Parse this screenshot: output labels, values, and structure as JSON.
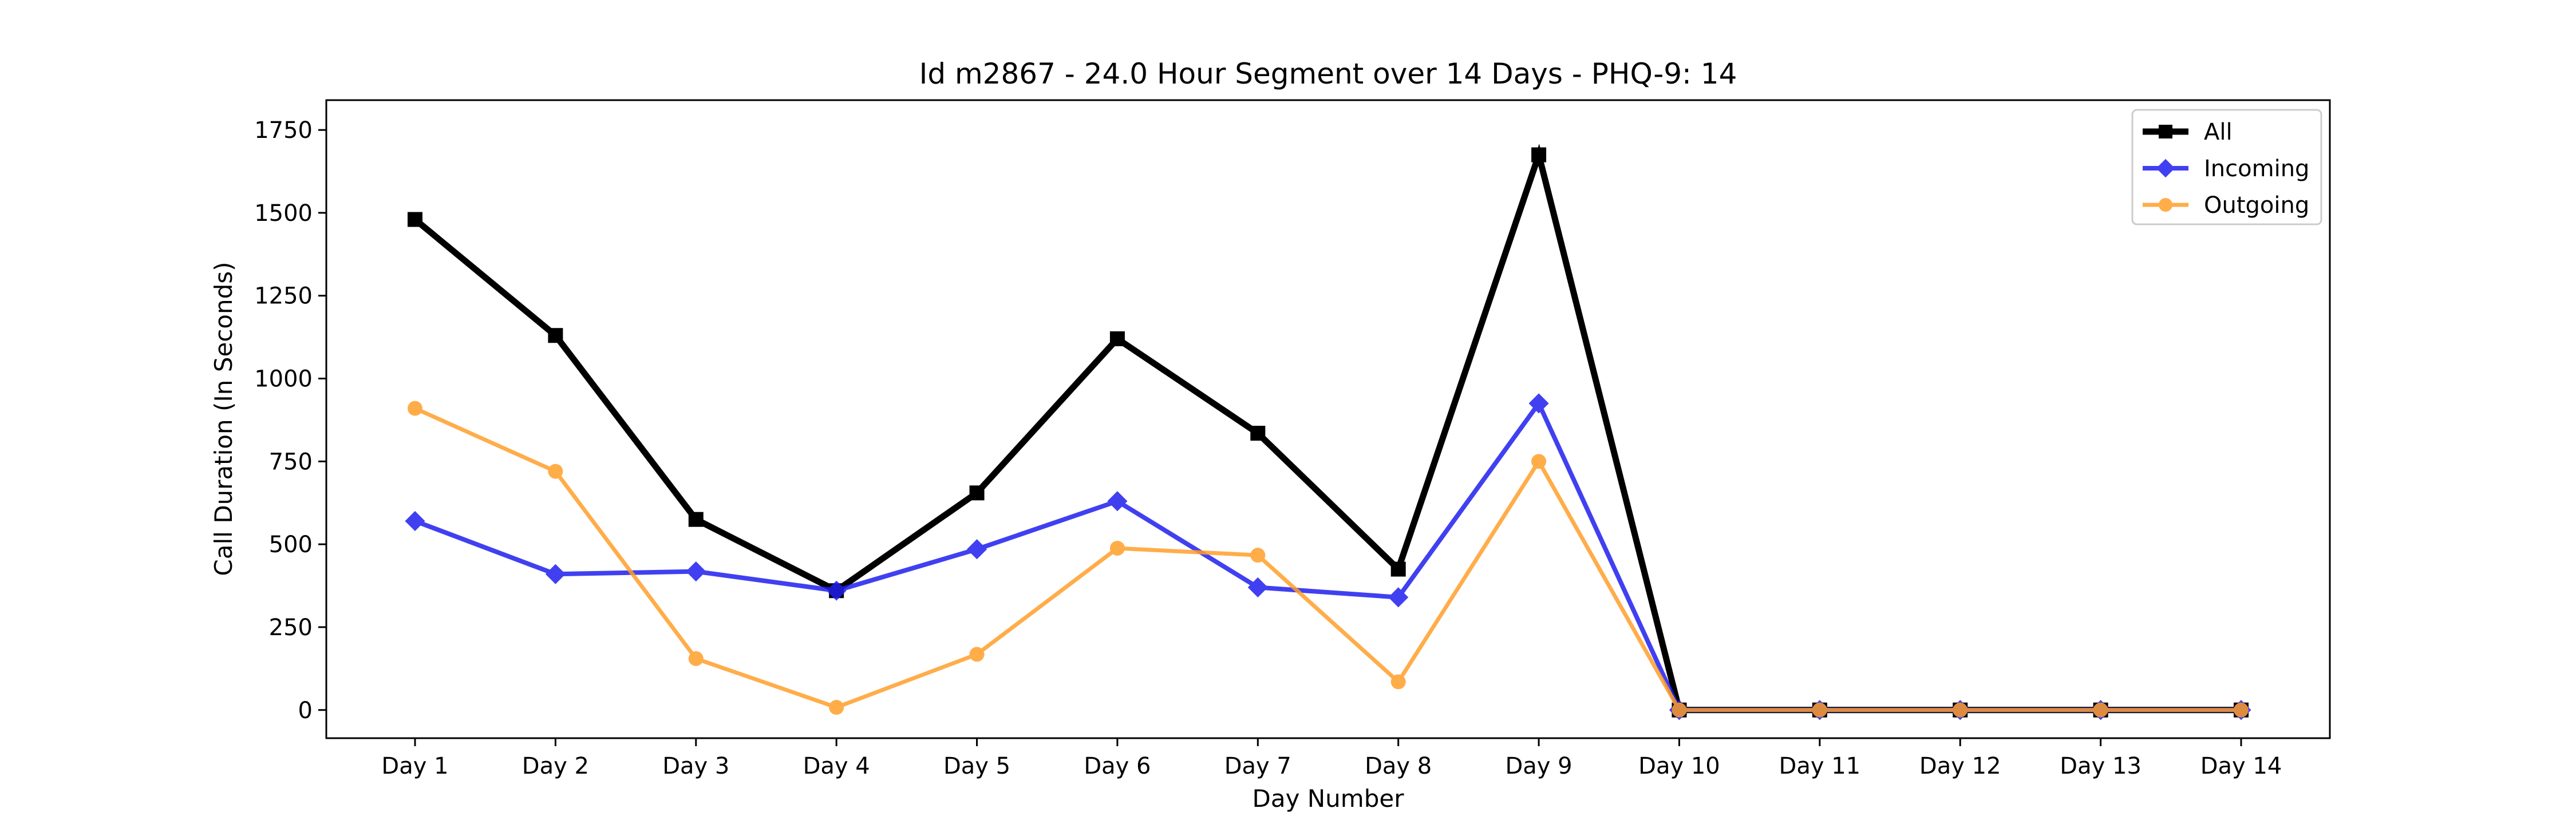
{
  "chart_data": {
    "type": "line",
    "title": "Id m2867 - 24.0 Hour Segment over 14 Days - PHQ-9: 14",
    "xlabel": "Day Number",
    "ylabel": "Call Duration (In Seconds)",
    "categories": [
      "Day 1",
      "Day 2",
      "Day 3",
      "Day 4",
      "Day 5",
      "Day 6",
      "Day 7",
      "Day 8",
      "Day 9",
      "Day 10",
      "Day 11",
      "Day 12",
      "Day 13",
      "Day 14"
    ],
    "ylim": [
      -85,
      1840
    ],
    "yticks": [
      0,
      250,
      500,
      750,
      1000,
      1250,
      1500,
      1750
    ],
    "grid": false,
    "legend_position": "top-right",
    "series": [
      {
        "name": "All",
        "color": "#000000",
        "marker": "square",
        "values": [
          1480,
          1130,
          575,
          360,
          655,
          1120,
          835,
          425,
          1675,
          0,
          0,
          0,
          0,
          0
        ]
      },
      {
        "name": "Incoming",
        "color": "#1f1fef",
        "marker": "diamond",
        "values": [
          570,
          410,
          418,
          360,
          485,
          630,
          370,
          340,
          925,
          0,
          0,
          0,
          0,
          0
        ]
      },
      {
        "name": "Outgoing",
        "color": "#ff9f2a",
        "marker": "circle",
        "values": [
          910,
          720,
          155,
          8,
          168,
          488,
          467,
          85,
          750,
          0,
          0,
          0,
          0,
          0
        ]
      }
    ]
  }
}
